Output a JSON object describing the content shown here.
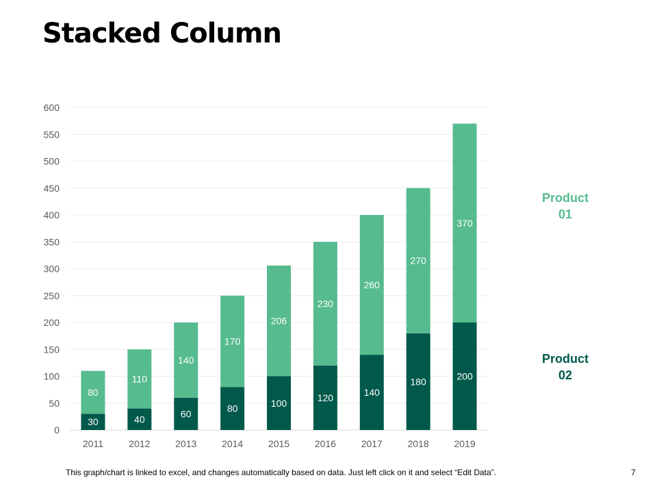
{
  "slide": {
    "title": "Stacked Column",
    "footer": "This graph/chart is linked to excel, and changes automatically based on data. Just left click on it and select “Edit Data”.",
    "page_number": "7"
  },
  "chart_data": {
    "type": "bar",
    "stacked": true,
    "categories": [
      "2011",
      "2012",
      "2013",
      "2014",
      "2015",
      "2016",
      "2017",
      "2018",
      "2019"
    ],
    "series": [
      {
        "name": "Product 02",
        "label_lines": [
          "Product",
          "02"
        ],
        "color": "#00594a",
        "values": [
          30,
          40,
          60,
          80,
          100,
          120,
          140,
          180,
          200
        ]
      },
      {
        "name": "Product 01",
        "label_lines": [
          "Product",
          "01"
        ],
        "color": "#56bb8f",
        "values": [
          80,
          110,
          140,
          170,
          206,
          230,
          260,
          270,
          370
        ]
      }
    ],
    "ylim": [
      0,
      600
    ],
    "yticks": [
      0,
      50,
      100,
      150,
      200,
      250,
      300,
      350,
      400,
      450,
      500,
      550,
      600
    ],
    "grid": true,
    "legend_position": "right",
    "data_labels": true
  }
}
